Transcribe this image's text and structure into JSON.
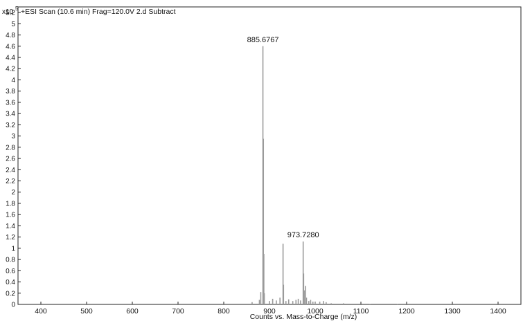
{
  "chart_data": {
    "type": "bar",
    "title": "+ESI Scan (10.6 min) Frag=120.0V 2.d  Subtract",
    "xlabel": "Counts vs. Mass-to-Charge (m/z)",
    "ylabel": "",
    "y_multiplier": "x10",
    "y_multiplier_exp": "5",
    "xlim": [
      350,
      1450
    ],
    "ylim": [
      0,
      5.3
    ],
    "x_ticks": [
      400,
      500,
      600,
      700,
      800,
      900,
      1000,
      1100,
      1200,
      1300,
      1400
    ],
    "y_ticks": [
      "0",
      "0.2",
      "0.4",
      "0.6",
      "0.8",
      "1",
      "1.2",
      "1.4",
      "1.6",
      "1.8",
      "2",
      "2.2",
      "2.4",
      "2.6",
      "2.8",
      "3",
      "3.2",
      "3.4",
      "3.6",
      "3.8",
      "4",
      "4.2",
      "4.4",
      "4.6",
      "4.8",
      "5",
      "5.2"
    ],
    "grid": false,
    "peaks": [
      {
        "x": 862,
        "y": 0.04
      },
      {
        "x": 878,
        "y": 0.08
      },
      {
        "x": 881,
        "y": 0.22
      },
      {
        "x": 885.6767,
        "y": 4.6
      },
      {
        "x": 886.7,
        "y": 2.95
      },
      {
        "x": 887.7,
        "y": 0.9
      },
      {
        "x": 888.7,
        "y": 0.2
      },
      {
        "x": 900,
        "y": 0.06
      },
      {
        "x": 907,
        "y": 0.1
      },
      {
        "x": 915,
        "y": 0.07
      },
      {
        "x": 923,
        "y": 0.12
      },
      {
        "x": 929.7,
        "y": 1.08
      },
      {
        "x": 930.7,
        "y": 0.35
      },
      {
        "x": 936,
        "y": 0.06
      },
      {
        "x": 942,
        "y": 0.09
      },
      {
        "x": 951,
        "y": 0.06
      },
      {
        "x": 958,
        "y": 0.08
      },
      {
        "x": 963,
        "y": 0.1
      },
      {
        "x": 968,
        "y": 0.07
      },
      {
        "x": 973.728,
        "y": 1.12
      },
      {
        "x": 974.7,
        "y": 0.55
      },
      {
        "x": 976,
        "y": 0.25
      },
      {
        "x": 979,
        "y": 0.33
      },
      {
        "x": 981,
        "y": 0.12
      },
      {
        "x": 986,
        "y": 0.06
      },
      {
        "x": 990,
        "y": 0.08
      },
      {
        "x": 995,
        "y": 0.05
      },
      {
        "x": 1000,
        "y": 0.04
      },
      {
        "x": 1010,
        "y": 0.05
      },
      {
        "x": 1018,
        "y": 0.06
      },
      {
        "x": 1024,
        "y": 0.04
      },
      {
        "x": 1035,
        "y": 0.02
      },
      {
        "x": 1062,
        "y": 0.02
      },
      {
        "x": 1120,
        "y": 0.01
      },
      {
        "x": 1180,
        "y": 0.01
      }
    ],
    "annotations": [
      {
        "label": "885.6767",
        "x": 885.6767,
        "y": 4.6
      },
      {
        "label": "973.7280",
        "x": 973.728,
        "y": 1.12
      }
    ]
  }
}
